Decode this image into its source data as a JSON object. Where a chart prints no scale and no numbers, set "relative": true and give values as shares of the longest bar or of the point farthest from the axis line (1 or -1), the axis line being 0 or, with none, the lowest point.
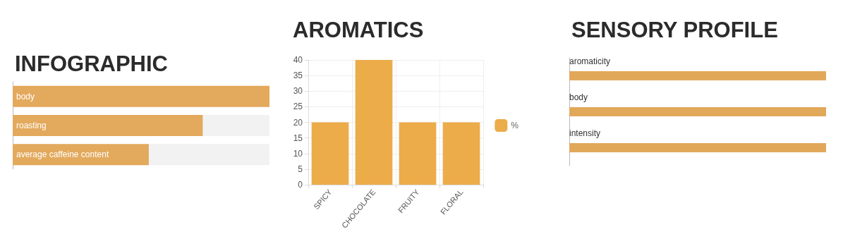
{
  "chart_data": [
    {
      "type": "bar",
      "title": "INFOGRAPHIC",
      "orientation": "horizontal",
      "relative": true,
      "categories": [
        "body",
        "roasting",
        "average caffeine content"
      ],
      "values": [
        1,
        0.74,
        0.53
      ],
      "color": "#e3a95c"
    },
    {
      "type": "bar",
      "title": "AROMATICS",
      "categories": [
        "SPICY",
        "CHOCOLATE",
        "FRUITY",
        "FLORAL"
      ],
      "series": [
        {
          "name": "%",
          "color": "#ecac4a",
          "values": [
            20,
            40,
            20,
            20
          ]
        }
      ],
      "ylim": [
        0,
        40
      ],
      "yticks": [
        0,
        5,
        10,
        15,
        20,
        25,
        30,
        35,
        40
      ],
      "grid": true,
      "legend": "right"
    },
    {
      "type": "bar",
      "title": "SENSORY PROFILE",
      "orientation": "horizontal",
      "relative": true,
      "categories": [
        "aromaticity",
        "body",
        "intensity"
      ],
      "values": [
        1,
        1,
        1
      ],
      "color": "#e1a85a"
    }
  ]
}
